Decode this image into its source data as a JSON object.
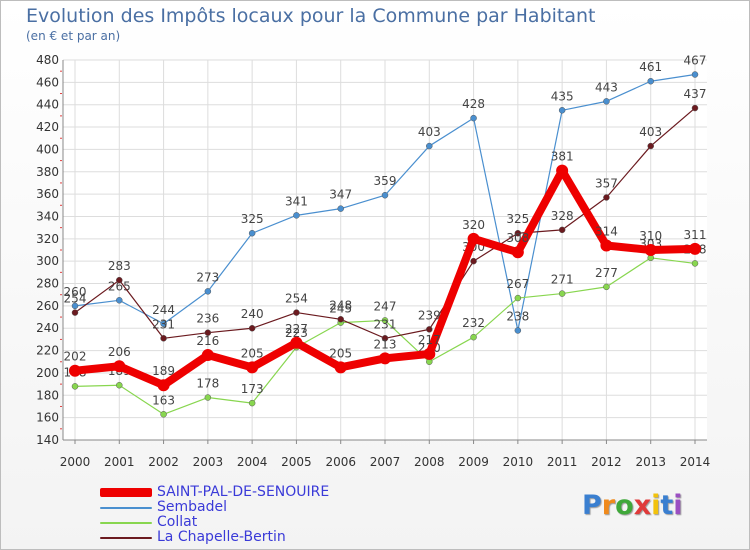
{
  "header": {
    "title": "Evolution des Impôts locaux pour la Commune par Habitant",
    "subtitle": "(en € et par an)"
  },
  "logo": {
    "text": "Proxiti",
    "letters": [
      {
        "ch": "P",
        "color": "#3a7fd0"
      },
      {
        "ch": "r",
        "color": "#f08a1c"
      },
      {
        "ch": "o",
        "color": "#3fa83a"
      },
      {
        "ch": "x",
        "color": "#e03a3a"
      },
      {
        "ch": "i",
        "color": "#f2c20c"
      },
      {
        "ch": "t",
        "color": "#3a7fd0"
      },
      {
        "ch": "i",
        "color": "#9b4fc2"
      }
    ]
  },
  "chart_data": {
    "type": "line",
    "title": "Evolution des Impôts locaux pour la Commune par Habitant",
    "subtitle": "(en € et par an)",
    "x": [
      2000,
      2001,
      2002,
      2003,
      2004,
      2005,
      2006,
      2007,
      2008,
      2009,
      2010,
      2011,
      2012,
      2013,
      2014
    ],
    "ylim": [
      140,
      480
    ],
    "yticks": [
      140,
      160,
      180,
      200,
      220,
      240,
      260,
      280,
      300,
      320,
      340,
      360,
      380,
      400,
      420,
      440,
      460,
      480
    ],
    "grid": true,
    "legend_position": "bottom-left",
    "series": [
      {
        "name": "Sembadel",
        "color": "#4a8fcf",
        "values": [
          260,
          265,
          244,
          273,
          325,
          341,
          347,
          359,
          403,
          428,
          238,
          435,
          443,
          461,
          467
        ]
      },
      {
        "name": "Collat",
        "color": "#88d64f",
        "values": [
          188,
          189,
          163,
          178,
          173,
          223,
          245,
          247,
          210,
          232,
          267,
          271,
          277,
          303,
          298
        ]
      },
      {
        "name": "La Chapelle-Bertin",
        "color": "#6b1a1f",
        "values": [
          254,
          283,
          231,
          236,
          240,
          254,
          248,
          231,
          239,
          300,
          325,
          328,
          357,
          403,
          437
        ]
      },
      {
        "name": "SAINT-PAL-DE-SENOUIRE",
        "color": "#ee0000",
        "values": [
          202,
          206,
          189,
          216,
          205,
          227,
          205,
          213,
          217,
          320,
          308,
          381,
          314,
          310,
          311
        ]
      }
    ],
    "legend_order": [
      "SAINT-PAL-DE-SENOUIRE",
      "Sembadel",
      "Collat",
      "La Chapelle-Bertin"
    ]
  }
}
